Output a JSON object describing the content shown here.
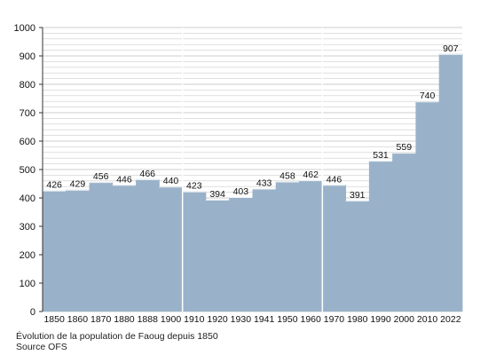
{
  "chart_data": {
    "type": "bar",
    "categories": [
      "1850",
      "1860",
      "1870",
      "1880",
      "1888",
      "1900",
      "1910",
      "1920",
      "1930",
      "1941",
      "1950",
      "1960",
      "1970",
      "1980",
      "1990",
      "2000",
      "2010",
      "2022"
    ],
    "values": [
      426,
      429,
      456,
      446,
      466,
      440,
      423,
      394,
      403,
      433,
      458,
      462,
      446,
      391,
      531,
      559,
      740,
      907
    ],
    "ylim": [
      0,
      1000
    ],
    "yticks": [
      0,
      100,
      200,
      300,
      400,
      500,
      600,
      700,
      800,
      900,
      1000
    ],
    "grid": true,
    "bar_color": "#9ab2c9",
    "grid_color": "#cccccc",
    "label_color": "#111111"
  },
  "captions": {
    "line1": "Évolution de la population de Faoug depuis 1850",
    "line2": "Source OFS"
  }
}
